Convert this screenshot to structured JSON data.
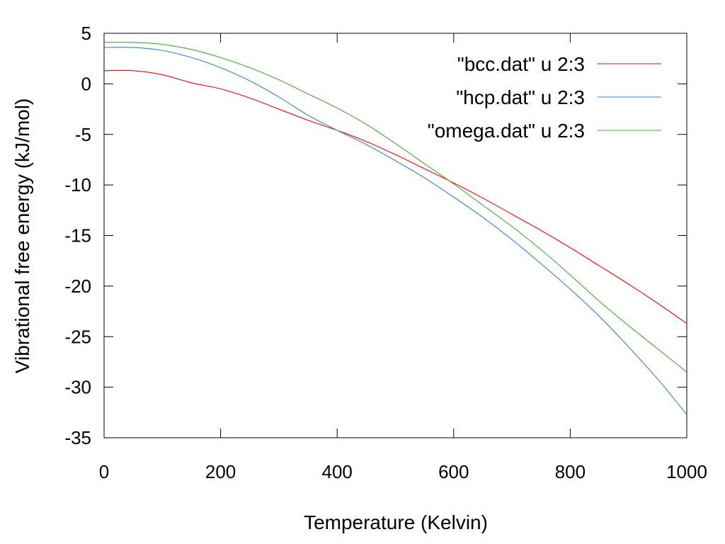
{
  "chart_data": {
    "type": "line",
    "title": "",
    "xlabel": "Temperature (Kelvin)",
    "ylabel": "Vibrational free energy (kJ/mol)",
    "xlim": [
      0,
      1000
    ],
    "ylim": [
      -35,
      5
    ],
    "xticks": [
      0,
      200,
      400,
      600,
      800,
      1000
    ],
    "yticks": [
      5,
      0,
      -5,
      -10,
      -15,
      -20,
      -25,
      -30,
      -35
    ],
    "grid": false,
    "legend_position": "top-right",
    "series": [
      {
        "name": "\"bcc.dat\" u 2:3",
        "color": "#ff0000",
        "x": [
          0,
          50,
          100,
          150,
          200,
          250,
          300,
          350,
          400,
          450,
          500,
          550,
          600,
          650,
          700,
          750,
          800,
          850,
          900,
          950,
          1000
        ],
        "y": [
          1.3,
          1.3,
          0.9,
          0.1,
          -0.5,
          -1.4,
          -2.5,
          -3.6,
          -4.6,
          -5.7,
          -7.0,
          -8.4,
          -9.8,
          -11.3,
          -12.9,
          -14.5,
          -16.2,
          -18.0,
          -19.8,
          -21.7,
          -23.7
        ]
      },
      {
        "name": "\"hcp.dat\" u 2:3",
        "color": "#3a7fd0",
        "x": [
          0,
          50,
          100,
          150,
          200,
          250,
          300,
          350,
          400,
          450,
          500,
          550,
          600,
          650,
          700,
          750,
          800,
          850,
          900,
          950,
          1000
        ],
        "y": [
          3.6,
          3.6,
          3.3,
          2.6,
          1.6,
          0.3,
          -1.3,
          -3.1,
          -4.6,
          -6.0,
          -7.6,
          -9.3,
          -11.2,
          -13.2,
          -15.4,
          -17.8,
          -20.3,
          -23.0,
          -26.0,
          -29.2,
          -32.7
        ]
      },
      {
        "name": "\"omega.dat\" u 2:3",
        "color": "#44aa33",
        "x": [
          0,
          50,
          100,
          150,
          200,
          250,
          300,
          350,
          400,
          450,
          500,
          550,
          600,
          650,
          700,
          750,
          800,
          850,
          900,
          950,
          1000
        ],
        "y": [
          4.1,
          4.1,
          3.9,
          3.4,
          2.6,
          1.6,
          0.4,
          -1.0,
          -2.4,
          -4.0,
          -5.9,
          -7.9,
          -9.9,
          -12.0,
          -14.1,
          -16.4,
          -18.9,
          -21.5,
          -23.9,
          -26.2,
          -28.5
        ]
      }
    ]
  }
}
